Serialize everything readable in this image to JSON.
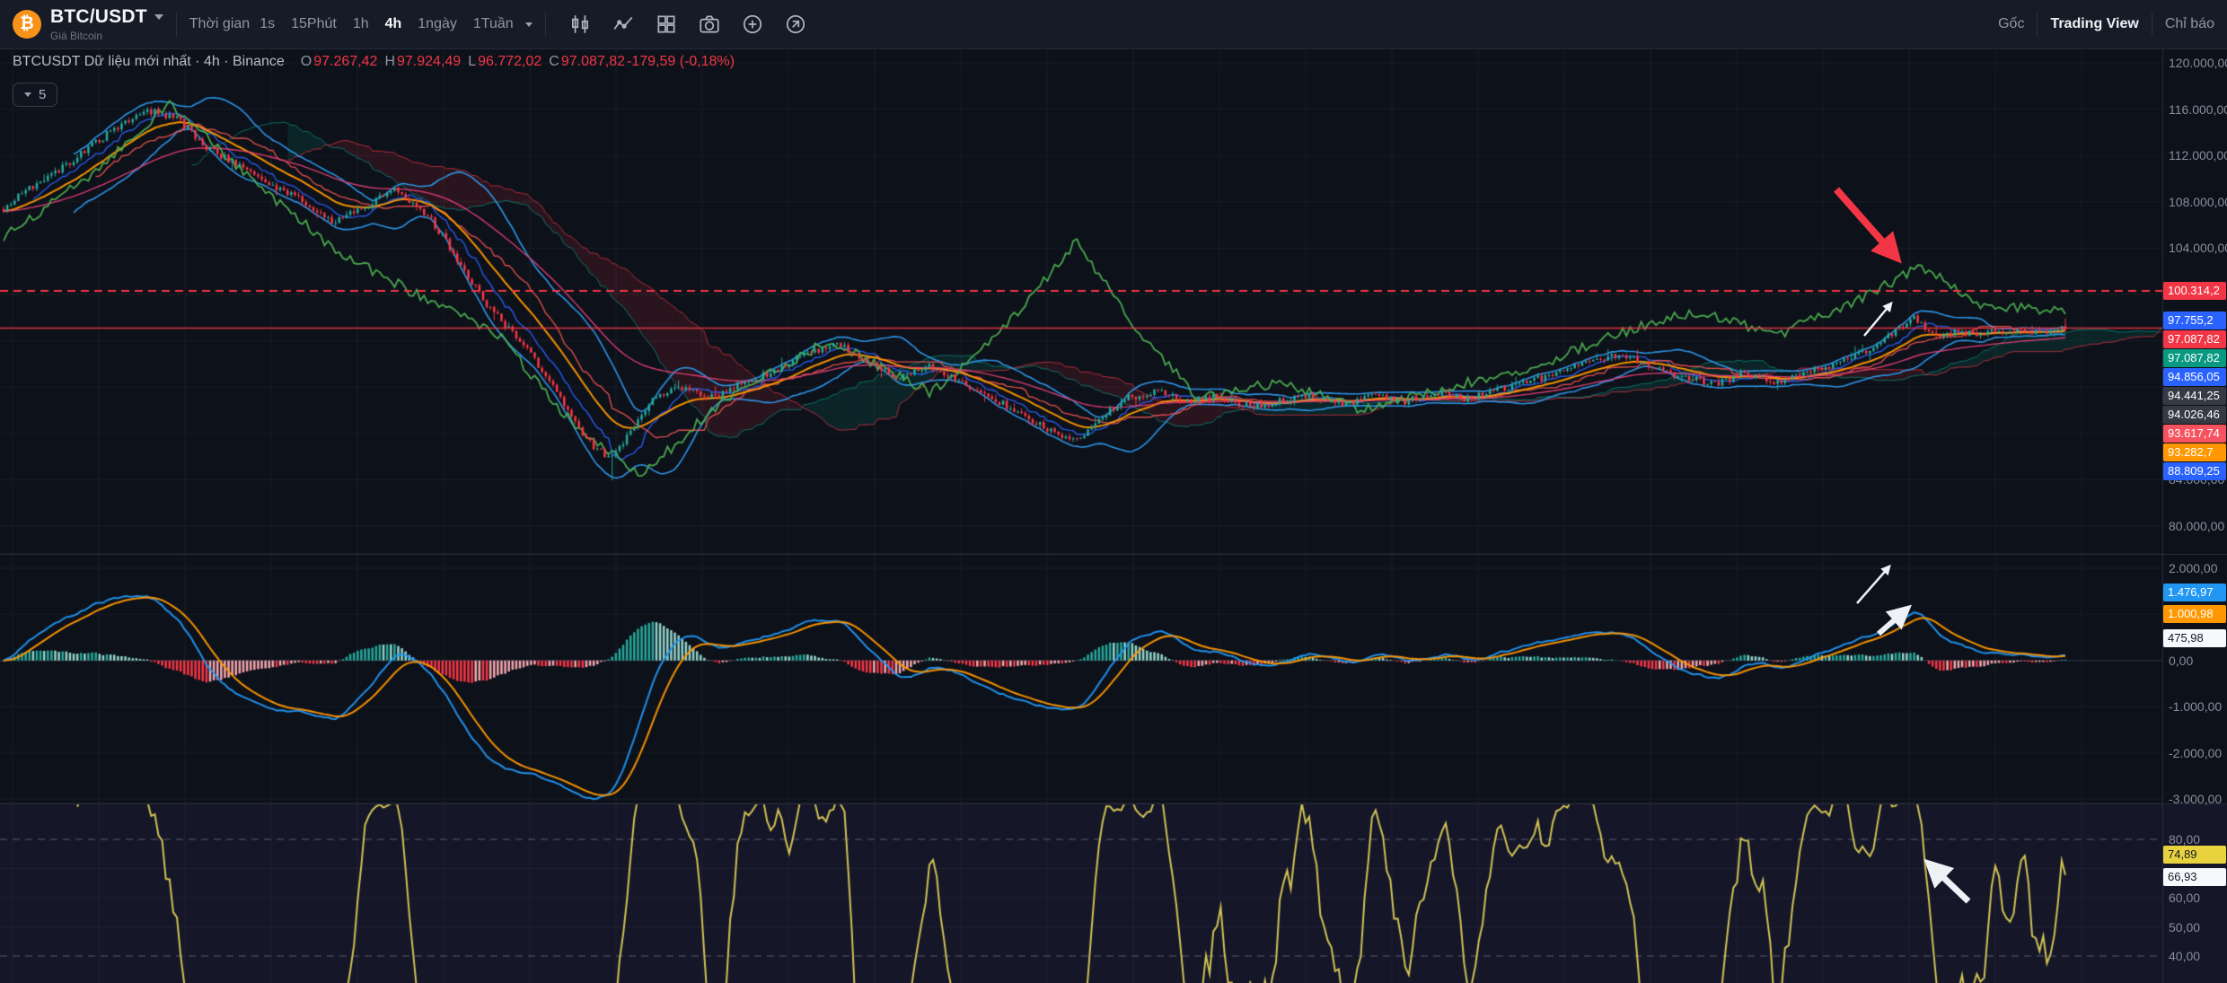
{
  "toolbar": {
    "btc_glyph": "₿",
    "symbol": "BTC/USDT",
    "symbol_subtitle": "Giá Bitcoin",
    "timeframe_label": "Thời gian",
    "timeframes": [
      "1s",
      "15Phút",
      "1h",
      "4h",
      "1ngày",
      "1Tuần"
    ],
    "active_timeframe": "4h",
    "icons": [
      "candlestick-icon",
      "indicators-icon",
      "layout-grid-icon",
      "camera-icon",
      "plus-circle-icon",
      "expand-icon"
    ],
    "right": {
      "origin": "Gốc",
      "brand": "Trading View",
      "indicators": "Chỉ báo"
    }
  },
  "legend": {
    "title": "BTCUSDT Dữ liệu mới nhất · 4h · Binance",
    "o_label": "O",
    "o": "97.267,42",
    "h_label": "H",
    "h": "97.924,49",
    "l_label": "L",
    "l": "96.772,02",
    "c_label": "C",
    "c": "97.087,82",
    "change": "-179,59 (-0,18%)",
    "collapsed_count": "5"
  },
  "axis": {
    "main_labels": [
      {
        "value": 120000,
        "label": "120.000,00"
      },
      {
        "value": 116000,
        "label": "116.000,00"
      },
      {
        "value": 112000,
        "label": "112.000,00"
      },
      {
        "value": 108000,
        "label": "108.000,00"
      },
      {
        "value": 104000,
        "label": "104.000,00"
      },
      {
        "value": 84000,
        "label": "84.000,00"
      },
      {
        "value": 80000,
        "label": "80.000,00"
      }
    ],
    "macd_labels": [
      {
        "value": 2000,
        "label": "2.000,00"
      },
      {
        "value": 0,
        "label": "0,00"
      },
      {
        "value": -1000,
        "label": "-1.000,00"
      },
      {
        "value": -2000,
        "label": "-2.000,00"
      },
      {
        "value": -3000,
        "label": "-3.000,00"
      }
    ],
    "stoch_labels": [
      {
        "value": 80,
        "label": "80,00"
      },
      {
        "value": 60,
        "label": "60,00"
      },
      {
        "value": 50,
        "label": "50,00"
      },
      {
        "value": 40,
        "label": "40,00"
      }
    ],
    "main_tags": [
      {
        "value": 100314.2,
        "label": "100.314,2",
        "bg": "#f23645",
        "fg": "#ffffff"
      },
      {
        "value": 97755.2,
        "label": "97.755,2",
        "bg": "#2962ff",
        "fg": "#ffffff"
      },
      {
        "value": 97087.82,
        "label": "97.087,82",
        "bg": "#f23645",
        "fg": "#ffffff"
      },
      {
        "value": 97087.82,
        "label": "97.087,82",
        "bg": "#089981",
        "fg": "#ffffff"
      },
      {
        "value": 94856.05,
        "label": "94.856,05",
        "bg": "#2962ff",
        "fg": "#ffffff"
      },
      {
        "value": 94441.25,
        "label": "94.441,25",
        "bg": "#363a45",
        "fg": "#ffffff"
      },
      {
        "value": 94026.46,
        "label": "94.026,46",
        "bg": "#363a45",
        "fg": "#ffffff"
      },
      {
        "value": 93617.74,
        "label": "93.617,74",
        "bg": "#f7525f",
        "fg": "#ffffff"
      },
      {
        "value": 93282.7,
        "label": "93.282,7",
        "bg": "#ff9800",
        "fg": "#ffffff"
      },
      {
        "value": 88809.25,
        "label": "88.809,25",
        "bg": "#2962ff",
        "fg": "#ffffff"
      }
    ],
    "macd_tags": [
      {
        "value": 1476.97,
        "label": "1.476,97",
        "bg": "#2196f3",
        "fg": "#ffffff"
      },
      {
        "value": 1000.98,
        "label": "1.000,98",
        "bg": "#ff9800",
        "fg": "#ffffff"
      },
      {
        "value": 475.98,
        "label": "475,98",
        "bg": "#f8f9fd",
        "fg": "#131722"
      }
    ],
    "stoch_tags": [
      {
        "value": 74.89,
        "label": "74,89",
        "bg": "#e8d33f",
        "fg": "#131722"
      },
      {
        "value": 66.93,
        "label": "66,93",
        "bg": "#f8f9fd",
        "fg": "#131722"
      }
    ]
  },
  "chart_data": {
    "type": "candlestick+indicators",
    "symbol": "BTCUSDT",
    "interval": "4h",
    "exchange": "Binance",
    "last": {
      "open": 97267.42,
      "high": 97924.49,
      "low": 96772.02,
      "close": 97087.82,
      "change": -179.59,
      "change_pct": -0.18
    },
    "levels": {
      "dashed_red": 100314.2,
      "last_price": 97087.82
    },
    "main_ylim": [
      80000,
      120000
    ],
    "macd_ylim": [
      -3000,
      2000
    ],
    "stoch_ylim": [
      30,
      85
    ],
    "stoch_bands": [
      80,
      40
    ],
    "price_anchors": [
      [
        0,
        107500
      ],
      [
        0.015,
        109500
      ],
      [
        0.03,
        111200
      ],
      [
        0.05,
        113800
      ],
      [
        0.07,
        115900
      ],
      [
        0.085,
        115100
      ],
      [
        0.1,
        112500
      ],
      [
        0.115,
        111000
      ],
      [
        0.13,
        109500
      ],
      [
        0.145,
        108200
      ],
      [
        0.16,
        106200
      ],
      [
        0.175,
        107600
      ],
      [
        0.19,
        109000
      ],
      [
        0.205,
        107000
      ],
      [
        0.215,
        104500
      ],
      [
        0.225,
        101500
      ],
      [
        0.235,
        99000
      ],
      [
        0.245,
        97000
      ],
      [
        0.255,
        95000
      ],
      [
        0.265,
        92500
      ],
      [
        0.275,
        89500
      ],
      [
        0.285,
        87000
      ],
      [
        0.295,
        85800
      ],
      [
        0.305,
        88500
      ],
      [
        0.315,
        91000
      ],
      [
        0.33,
        92000
      ],
      [
        0.345,
        91000
      ],
      [
        0.36,
        92500
      ],
      [
        0.375,
        93500
      ],
      [
        0.39,
        95000
      ],
      [
        0.405,
        95800
      ],
      [
        0.42,
        94000
      ],
      [
        0.435,
        92800
      ],
      [
        0.45,
        93800
      ],
      [
        0.465,
        92500
      ],
      [
        0.48,
        91000
      ],
      [
        0.495,
        89500
      ],
      [
        0.51,
        88000
      ],
      [
        0.52,
        87300
      ],
      [
        0.53,
        89000
      ],
      [
        0.545,
        91000
      ],
      [
        0.56,
        91800
      ],
      [
        0.575,
        90800
      ],
      [
        0.59,
        91200
      ],
      [
        0.605,
        90300
      ],
      [
        0.62,
        90800
      ],
      [
        0.635,
        91300
      ],
      [
        0.65,
        90500
      ],
      [
        0.665,
        91300
      ],
      [
        0.68,
        90800
      ],
      [
        0.695,
        91500
      ],
      [
        0.71,
        91000
      ],
      [
        0.725,
        91800
      ],
      [
        0.74,
        92500
      ],
      [
        0.755,
        93200
      ],
      [
        0.77,
        94200
      ],
      [
        0.785,
        94800
      ],
      [
        0.8,
        93800
      ],
      [
        0.815,
        92800
      ],
      [
        0.83,
        92300
      ],
      [
        0.845,
        93200
      ],
      [
        0.86,
        92500
      ],
      [
        0.875,
        93300
      ],
      [
        0.89,
        94200
      ],
      [
        0.905,
        95200
      ],
      [
        0.917,
        96800
      ],
      [
        0.927,
        97900
      ],
      [
        0.937,
        96200
      ],
      [
        0.947,
        96900
      ],
      [
        0.957,
        96500
      ],
      [
        0.97,
        96900
      ],
      [
        0.985,
        96600
      ],
      [
        1,
        97087.82
      ]
    ],
    "green_anchors": [
      [
        0,
        105000
      ],
      [
        0.04,
        110000
      ],
      [
        0.08,
        116500
      ],
      [
        0.12,
        110000
      ],
      [
        0.16,
        104000
      ],
      [
        0.2,
        100000
      ],
      [
        0.24,
        96500
      ],
      [
        0.28,
        88000
      ],
      [
        0.31,
        84500
      ],
      [
        0.35,
        91000
      ],
      [
        0.4,
        96000
      ],
      [
        0.45,
        91500
      ],
      [
        0.48,
        96000
      ],
      [
        0.52,
        104500
      ],
      [
        0.55,
        97000
      ],
      [
        0.58,
        91000
      ],
      [
        0.62,
        92500
      ],
      [
        0.66,
        90000
      ],
      [
        0.7,
        92000
      ],
      [
        0.74,
        93500
      ],
      [
        0.78,
        96500
      ],
      [
        0.82,
        98500
      ],
      [
        0.86,
        96500
      ],
      [
        0.9,
        99500
      ],
      [
        0.93,
        102500
      ],
      [
        0.96,
        99000
      ],
      [
        1,
        98500
      ]
    ]
  },
  "colors": {
    "up": "#26a69a",
    "down": "#f23645",
    "bb": "#2d9bf0",
    "tenkan": "#2962ff",
    "kijun": "#ef5350",
    "ema20": "#ff9800",
    "ema60": "#ec407a",
    "green_overlay": "#4caf50",
    "macd_line": "#2196f3",
    "signal_line": "#ff9800",
    "stoch_k": "#e3d44d",
    "stoch_d": "#f0f3fa",
    "level_red": "#f23645"
  }
}
